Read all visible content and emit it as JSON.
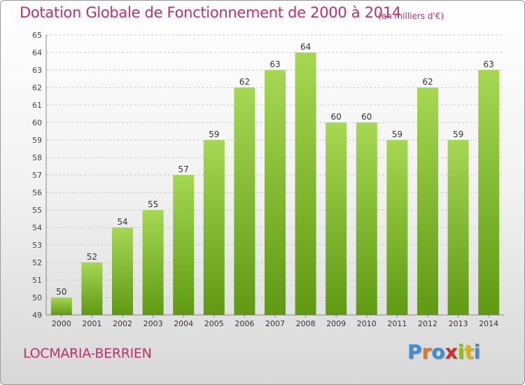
{
  "header": {
    "title": "Dotation Globale de Fonctionnement de 2000 à 2014",
    "unit_note": "(en milliers d'€)"
  },
  "footer": {
    "commune": "LOCMARIA-BERRIEN",
    "logo": "Proxiti"
  },
  "colors": {
    "bar_light": "#9fd44a",
    "bar_dark": "#5f9a12",
    "title": "#c0306a"
  },
  "chart_data": {
    "type": "bar",
    "title": "Dotation Globale de Fonctionnement de 2000 à 2014",
    "subtitle": "(en milliers d'€)",
    "categories": [
      "2000",
      "2001",
      "2002",
      "2003",
      "2004",
      "2005",
      "2006",
      "2007",
      "2008",
      "2009",
      "2010",
      "2011",
      "2012",
      "2013",
      "2014"
    ],
    "values": [
      50,
      52,
      54,
      55,
      57,
      59,
      62,
      63,
      64,
      60,
      60,
      59,
      62,
      59,
      63
    ],
    "ylim": [
      49,
      65
    ],
    "yticks": [
      49,
      50,
      51,
      52,
      53,
      54,
      55,
      56,
      57,
      58,
      59,
      60,
      61,
      62,
      63,
      64,
      65
    ],
    "grid": true,
    "data_labels": true
  }
}
